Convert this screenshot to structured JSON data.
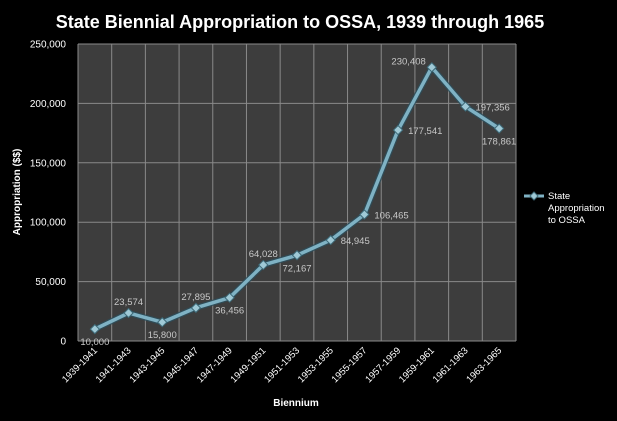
{
  "chart_data": {
    "type": "line",
    "title": "State Biennial Appropriation to OSSA, 1939 through 1965",
    "xlabel": "Biennium",
    "ylabel": "Appropriation ($$)",
    "ylim": [
      0,
      250000
    ],
    "yticks": [
      "0",
      "50,000",
      "100,000",
      "150,000",
      "200,000",
      "250,000"
    ],
    "categories": [
      "1939-1941",
      "1941-1943",
      "1943-1945",
      "1945-1947",
      "1947-1949",
      "1949-1951",
      "1951-1953",
      "1953-1955",
      "1955-1957",
      "1957-1959",
      "1959-1961",
      "1961-1963",
      "1963-1965"
    ],
    "series": [
      {
        "name": "State Appropriation to OSSA",
        "legend_lines": [
          "State",
          "Appropriation",
          "to OSSA"
        ],
        "values": [
          10000,
          23574,
          15800,
          27895,
          36456,
          64028,
          72167,
          84945,
          106465,
          177541,
          230408,
          197356,
          178861
        ],
        "labels": [
          "10,000",
          "23,574",
          "15,800",
          "27,895",
          "36,456",
          "64,028",
          "72,167",
          "84,945",
          "106,465",
          "177,541",
          "230,408",
          "197,356",
          "178,861"
        ],
        "color": "#7fb2c4"
      }
    ],
    "grid": true,
    "legend_position": "right",
    "plot_background": "#3d3d3d",
    "page_background": "#000000",
    "gridline_color": "#8a8a8a"
  }
}
